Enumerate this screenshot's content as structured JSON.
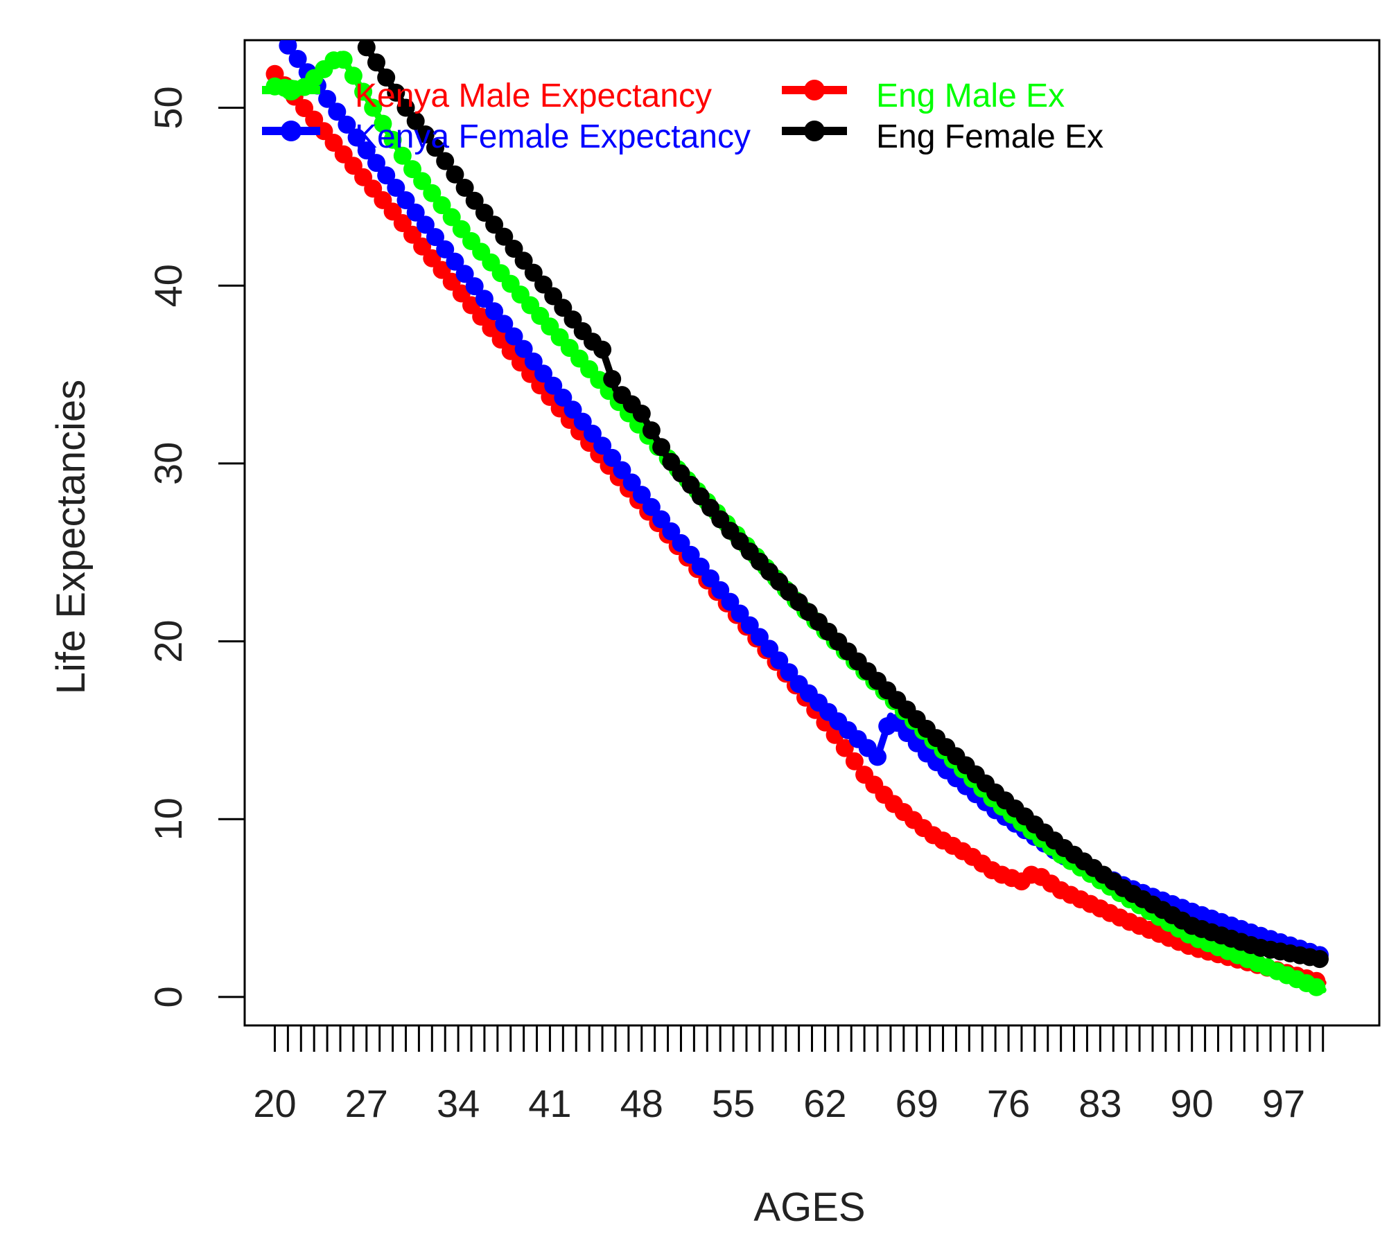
{
  "chart_data": {
    "type": "line",
    "title": "",
    "xlabel": "AGES",
    "ylabel": "Life Expectancies",
    "xlim": [
      17.7,
      104.3
    ],
    "ylim": [
      -1.6,
      53.8
    ],
    "x_ticks": [
      20,
      21,
      22,
      23,
      24,
      25,
      26,
      27,
      28,
      29,
      30,
      31,
      32,
      33,
      34,
      35,
      36,
      37,
      38,
      39,
      40,
      41,
      42,
      43,
      44,
      45,
      46,
      47,
      48,
      49,
      50,
      51,
      52,
      53,
      54,
      55,
      56,
      57,
      58,
      59,
      60,
      61,
      62,
      63,
      64,
      65,
      66,
      67,
      68,
      69,
      70,
      71,
      72,
      73,
      74,
      75,
      76,
      77,
      78,
      79,
      80,
      81,
      82,
      83,
      84,
      85,
      86,
      87,
      88,
      89,
      90,
      91,
      92,
      93,
      94,
      95,
      96,
      97,
      98,
      99,
      100
    ],
    "x_tick_labels": [
      "20",
      "27",
      "34",
      "41",
      "48",
      "55",
      "62",
      "69",
      "76",
      "83",
      "90",
      "97"
    ],
    "y_tick_labels": [
      "0",
      "10",
      "20",
      "30",
      "40",
      "50"
    ],
    "grid": false,
    "legend_position": "top-left",
    "series": [
      {
        "name": "Kenya Male Expectancy",
        "color": "#ff0000",
        "points": [
          [
            20,
            51.9
          ],
          [
            22,
            50.2
          ],
          [
            25,
            47.6
          ],
          [
            30,
            43.3
          ],
          [
            35,
            38.9
          ],
          [
            40,
            34.6
          ],
          [
            45,
            30.3
          ],
          [
            50,
            26.0
          ],
          [
            55,
            21.7
          ],
          [
            60,
            17.3
          ],
          [
            63,
            14.5
          ],
          [
            65,
            12.5
          ],
          [
            67,
            11.0
          ],
          [
            70,
            9.2
          ],
          [
            73,
            8.0
          ],
          [
            75,
            7.0
          ],
          [
            77,
            6.5
          ],
          [
            78,
            7.0
          ],
          [
            80,
            6.0
          ],
          [
            85,
            4.3
          ],
          [
            90,
            2.8
          ],
          [
            95,
            1.8
          ],
          [
            100,
            0.8
          ]
        ]
      },
      {
        "name": "Kenya Female Expectancy",
        "color": "#0000ff",
        "points": [
          [
            21,
            53.5
          ],
          [
            24,
            50.5
          ],
          [
            27,
            47.6
          ],
          [
            30,
            44.8
          ],
          [
            35,
            40.2
          ],
          [
            40,
            35.5
          ],
          [
            45,
            31.0
          ],
          [
            50,
            26.4
          ],
          [
            55,
            22.0
          ],
          [
            60,
            17.6
          ],
          [
            63,
            15.5
          ],
          [
            66,
            13.5
          ],
          [
            67,
            15.8
          ],
          [
            70,
            13.5
          ],
          [
            75,
            10.5
          ],
          [
            80,
            8.0
          ],
          [
            85,
            6.2
          ],
          [
            90,
            4.8
          ],
          [
            95,
            3.5
          ],
          [
            100,
            2.3
          ]
        ]
      },
      {
        "name": "Eng Male Ex",
        "color": "#00ff00",
        "points": [
          [
            20,
            51.2
          ],
          [
            22,
            51.0
          ],
          [
            25,
            53.0
          ],
          [
            30,
            47.0
          ],
          [
            35,
            42.5
          ],
          [
            40,
            38.5
          ],
          [
            45,
            34.5
          ],
          [
            50,
            30.3
          ],
          [
            55,
            26.2
          ],
          [
            60,
            22.1
          ],
          [
            65,
            18.3
          ],
          [
            70,
            14.6
          ],
          [
            75,
            11.0
          ],
          [
            80,
            8.0
          ],
          [
            85,
            5.6
          ],
          [
            90,
            3.4
          ],
          [
            95,
            1.9
          ],
          [
            100,
            0.4
          ]
        ]
      },
      {
        "name": "Eng Female Ex",
        "color": "#000000",
        "points": [
          [
            27,
            53.4
          ],
          [
            30,
            50.0
          ],
          [
            35,
            45.0
          ],
          [
            40,
            40.5
          ],
          [
            44,
            37.0
          ],
          [
            45,
            36.4
          ],
          [
            46,
            34.2
          ],
          [
            48,
            32.8
          ],
          [
            50,
            30.3
          ],
          [
            55,
            26.0
          ],
          [
            60,
            22.2
          ],
          [
            65,
            18.5
          ],
          [
            70,
            14.9
          ],
          [
            75,
            11.5
          ],
          [
            80,
            8.5
          ],
          [
            85,
            6.0
          ],
          [
            90,
            4.0
          ],
          [
            95,
            2.8
          ],
          [
            100,
            2.1
          ]
        ]
      }
    ],
    "legend": [
      {
        "label": "Kenya Male Expectancy",
        "color": "#ff0000"
      },
      {
        "label": "Kenya Female Expectancy",
        "color": "#0000ff"
      },
      {
        "label": "Eng Male Ex",
        "color": "#00ff00"
      },
      {
        "label": "Eng Female Ex",
        "color": "#000000"
      }
    ]
  }
}
